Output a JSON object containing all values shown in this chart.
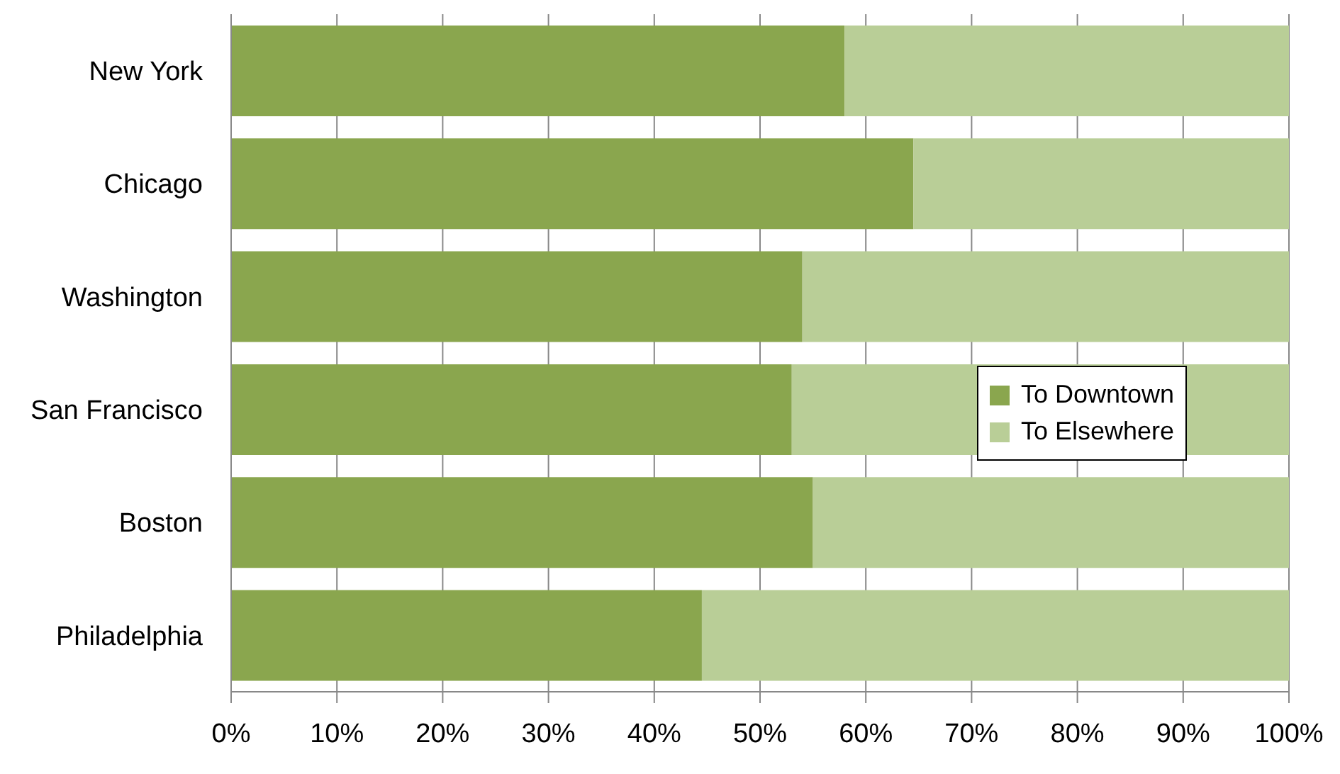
{
  "chart_data": {
    "type": "bar",
    "orientation": "horizontal",
    "stacked": true,
    "categories": [
      "New York",
      "Chicago",
      "Washington",
      "San Francisco",
      "Boston",
      "Philadelphia"
    ],
    "series": [
      {
        "name": "To Downtown",
        "color": "#8aa64e",
        "values": [
          58,
          64.5,
          54,
          53,
          55,
          44.5
        ]
      },
      {
        "name": "To Elsewhere",
        "color": "#b9ce97",
        "values": [
          42,
          35.5,
          46,
          47,
          45,
          55.5
        ]
      }
    ],
    "xlim": [
      0,
      100
    ],
    "xticks": [
      {
        "value": 0,
        "label": "0%"
      },
      {
        "value": 10,
        "label": "10%"
      },
      {
        "value": 20,
        "label": "20%"
      },
      {
        "value": 30,
        "label": "30%"
      },
      {
        "value": 40,
        "label": "40%"
      },
      {
        "value": 50,
        "label": "50%"
      },
      {
        "value": 60,
        "label": "60%"
      },
      {
        "value": 70,
        "label": "70%"
      },
      {
        "value": 80,
        "label": "80%"
      },
      {
        "value": 90,
        "label": "90%"
      },
      {
        "value": 100,
        "label": "100%"
      }
    ],
    "grid": "x",
    "legend": "right"
  }
}
